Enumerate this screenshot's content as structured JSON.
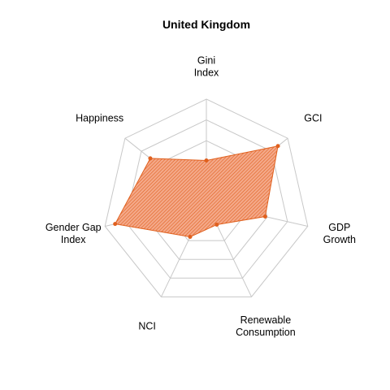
{
  "chart_data": {
    "type": "radar",
    "title": "United Kingdom",
    "axes": [
      [
        "Gini",
        "Index"
      ],
      [
        "GCI"
      ],
      [
        "GDP",
        "Growth"
      ],
      [
        "Renewable",
        "Consumption"
      ],
      [
        "NCI"
      ],
      [
        "Gender Gap",
        "Index"
      ],
      [
        "Happiness"
      ]
    ],
    "values": [
      0.41,
      0.88,
      0.58,
      0.23,
      0.36,
      0.9,
      0.69
    ],
    "range": [
      0,
      1
    ],
    "grid_levels": 5,
    "color": "#e0601e",
    "grid_color": "#c8c8c8"
  }
}
